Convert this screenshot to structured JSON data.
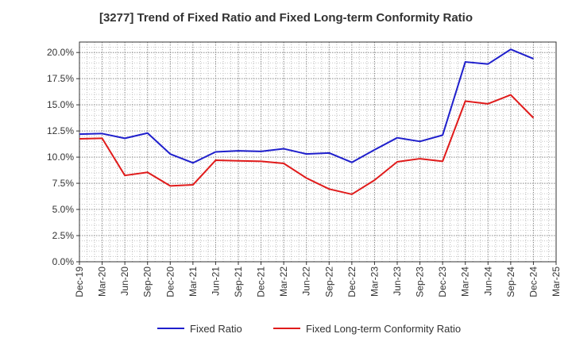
{
  "chart_data": {
    "type": "line",
    "title": "[3277]  Trend of Fixed Ratio and Fixed Long-term Conformity Ratio",
    "xlabel": "",
    "ylabel": "",
    "categories": [
      "Dec-19",
      "Mar-20",
      "Jun-20",
      "Sep-20",
      "Dec-20",
      "Mar-21",
      "Jun-21",
      "Sep-21",
      "Dec-21",
      "Mar-22",
      "Jun-22",
      "Sep-22",
      "Dec-22",
      "Mar-23",
      "Jun-23",
      "Sep-23",
      "Dec-23",
      "Mar-24",
      "Jun-24",
      "Sep-24",
      "Dec-24",
      "Mar-25"
    ],
    "y_ticks": [
      "0.0%",
      "2.5%",
      "5.0%",
      "7.5%",
      "10.0%",
      "12.5%",
      "15.0%",
      "17.5%",
      "20.0%"
    ],
    "ylim": [
      0,
      21
    ],
    "grid": true,
    "legend_position": "bottom",
    "series": [
      {
        "name": "Fixed Ratio",
        "color": "#1f1fcc",
        "values": [
          12.2,
          12.25,
          11.8,
          12.3,
          10.3,
          9.45,
          10.5,
          10.6,
          10.55,
          10.8,
          10.3,
          10.4,
          9.5,
          10.7,
          11.85,
          11.5,
          12.1,
          19.1,
          18.9,
          20.3,
          19.4,
          null
        ]
      },
      {
        "name": "Fixed Long-term Conformity Ratio",
        "color": "#e01b1b",
        "values": [
          11.75,
          11.8,
          8.25,
          8.55,
          7.25,
          7.35,
          9.7,
          9.65,
          9.6,
          9.4,
          8.0,
          6.95,
          6.45,
          7.8,
          9.55,
          9.85,
          9.6,
          15.35,
          15.1,
          15.95,
          13.75,
          null
        ]
      }
    ]
  }
}
